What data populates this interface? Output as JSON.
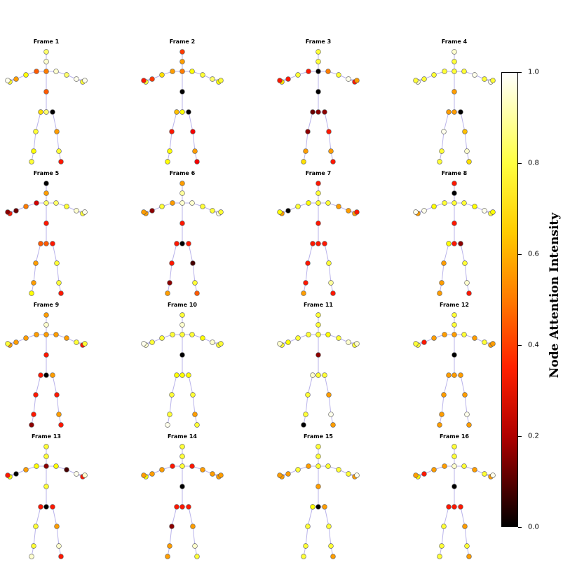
{
  "chart_data": {
    "type": "scatter",
    "description_note": "",
    "frames": [
      {
        "title": "Frame 1",
        "attention": [
          0.85,
          0.95,
          0.55,
          0.5,
          0.75,
          0.6,
          0.8,
          0.98,
          0.95,
          0.85,
          0.98,
          0.8,
          0.98,
          0.5,
          0.7,
          0.85,
          0.0,
          0.8,
          0.75,
          0.8,
          0.6,
          0.8,
          0.4,
          0.8
        ]
      },
      {
        "title": "Frame 2",
        "attention": [
          0.45,
          0.6,
          0.55,
          0.6,
          0.7,
          0.45,
          0.8,
          0.4,
          0.75,
          0.8,
          0.85,
          0.75,
          0.8,
          0.0,
          0.65,
          0.75,
          0.0,
          0.4,
          0.75,
          0.75,
          0.35,
          0.6,
          0.35,
          0.8
        ]
      },
      {
        "title": "Frame 3",
        "attention": [
          0.8,
          0.8,
          0.0,
          0.4,
          0.8,
          0.4,
          0.7,
          0.4,
          0.55,
          0.8,
          0.98,
          0.4,
          0.6,
          0.0,
          0.15,
          0.2,
          0.2,
          0.2,
          0.6,
          0.7,
          0.4,
          0.6,
          0.4,
          0.8
        ]
      },
      {
        "title": "Frame 4",
        "attention": [
          0.95,
          0.8,
          0.8,
          0.8,
          0.8,
          0.8,
          0.95,
          0.8,
          0.8,
          0.98,
          0.8,
          0.98,
          0.8,
          0.6,
          0.6,
          0.6,
          0.0,
          0.98,
          0.8,
          0.8,
          0.65,
          0.95,
          0.7,
          0.8
        ]
      },
      {
        "title": "Frame 5",
        "attention": [
          0.0,
          0.6,
          0.85,
          0.3,
          0.55,
          0.15,
          0.4,
          0.2,
          0.85,
          0.8,
          0.95,
          0.8,
          0.98,
          0.4,
          0.5,
          0.5,
          0.4,
          0.6,
          0.6,
          0.75,
          0.8,
          0.8,
          0.4,
          0.85
        ]
      },
      {
        "title": "Frame 6",
        "attention": [
          0.6,
          0.9,
          0.95,
          0.6,
          0.8,
          0.2,
          0.6,
          0.6,
          0.95,
          0.8,
          0.8,
          0.98,
          0.8,
          0.4,
          0.4,
          0.0,
          0.4,
          0.4,
          0.2,
          0.6,
          0.1,
          0.8,
          0.5,
          0.75
        ]
      },
      {
        "title": "Frame 7",
        "attention": [
          0.4,
          0.8,
          0.8,
          0.75,
          0.8,
          0.0,
          0.6,
          0.75,
          0.8,
          0.6,
          0.6,
          0.6,
          0.4,
          0.4,
          0.4,
          0.4,
          0.4,
          0.4,
          0.4,
          0.6,
          0.8,
          0.9,
          0.4,
          0.98
        ]
      },
      {
        "title": "Frame 8",
        "attention": [
          0.4,
          0.0,
          0.8,
          0.8,
          0.75,
          0.98,
          0.6,
          0.98,
          0.8,
          0.75,
          0.98,
          0.8,
          0.75,
          0.4,
          0.75,
          0.4,
          0.2,
          0.6,
          0.6,
          0.6,
          0.8,
          0.95,
          0.4,
          0.8
        ]
      },
      {
        "title": "Frame 9",
        "attention": [
          0.6,
          0.95,
          0.6,
          0.6,
          0.6,
          0.6,
          0.6,
          0.8,
          0.6,
          0.6,
          0.8,
          0.4,
          0.8,
          0.4,
          0.4,
          0.0,
          0.6,
          0.4,
          0.4,
          0.2,
          0.4,
          0.6,
          0.4,
          0.6
        ]
      },
      {
        "title": "Frame 10",
        "attention": [
          0.8,
          0.95,
          0.8,
          0.8,
          0.8,
          0.8,
          0.95,
          0.98,
          0.8,
          0.75,
          0.95,
          0.8,
          0.8,
          0.0,
          0.75,
          0.75,
          0.75,
          0.8,
          0.8,
          0.98,
          0.8,
          0.6,
          0.8,
          0.8
        ]
      },
      {
        "title": "Frame 11",
        "attention": [
          0.8,
          0.8,
          0.8,
          0.8,
          0.8,
          0.75,
          0.8,
          0.95,
          0.75,
          0.8,
          0.95,
          0.8,
          0.95,
          0.2,
          0.95,
          0.8,
          0.8,
          0.8,
          0.8,
          0.0,
          0.6,
          0.98,
          0.6,
          0.8
        ]
      },
      {
        "title": "Frame 12",
        "attention": [
          0.8,
          0.8,
          0.6,
          0.6,
          0.6,
          0.4,
          0.8,
          0.8,
          0.8,
          0.6,
          0.8,
          0.6,
          0.6,
          0.0,
          0.6,
          0.6,
          0.6,
          0.6,
          0.6,
          0.6,
          0.6,
          0.98,
          0.6,
          0.4
        ]
      },
      {
        "title": "Frame 13",
        "attention": [
          0.8,
          0.8,
          0.2,
          0.75,
          0.6,
          0.0,
          0.75,
          0.4,
          0.75,
          0.1,
          0.98,
          0.4,
          0.95,
          0.8,
          0.4,
          0.0,
          0.4,
          0.8,
          0.8,
          0.95,
          0.6,
          0.95,
          0.4,
          0.6
        ]
      },
      {
        "title": "Frame 14",
        "attention": [
          0.8,
          0.8,
          0.8,
          0.4,
          0.6,
          0.6,
          0.75,
          0.6,
          0.4,
          0.6,
          0.6,
          0.6,
          0.6,
          0.0,
          0.4,
          0.4,
          0.4,
          0.2,
          0.6,
          0.6,
          0.6,
          0.95,
          0.8,
          0.8
        ]
      },
      {
        "title": "Frame 15",
        "attention": [
          0.8,
          0.8,
          0.8,
          0.6,
          0.8,
          0.6,
          0.6,
          0.6,
          0.8,
          0.8,
          0.8,
          0.6,
          0.98,
          0.6,
          0.75,
          0.0,
          0.6,
          0.8,
          0.8,
          0.8,
          0.8,
          0.8,
          0.6,
          0.8
        ]
      },
      {
        "title": "Frame 16",
        "attention": [
          0.8,
          0.8,
          0.95,
          0.6,
          0.6,
          0.4,
          0.75,
          0.6,
          0.8,
          0.6,
          0.8,
          0.6,
          0.98,
          0.0,
          0.4,
          0.4,
          0.4,
          0.8,
          0.8,
          0.8,
          0.6,
          0.8,
          0.6,
          0.8
        ]
      }
    ],
    "colorbar": {
      "label": "Node Attention Intensity",
      "range": [
        0.0,
        1.0
      ],
      "ticks": [
        "0.0",
        "0.2",
        "0.4",
        "0.6",
        "0.8",
        "1.0"
      ],
      "colormap": "hot"
    },
    "colors": {
      "bone": "#b9b3ea",
      "node_outline": "#555555"
    }
  }
}
